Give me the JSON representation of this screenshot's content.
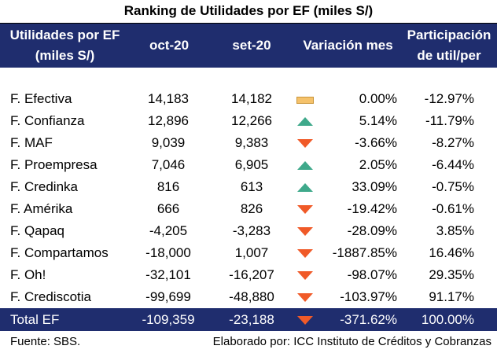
{
  "title": "Ranking de Utilidades por EF (miles S/)",
  "header": {
    "col_name_line1": "Utilidades por EF",
    "col_name_line2": "(miles S/)",
    "col_oct": "oct-20",
    "col_set": "set-20",
    "col_var": "Variación mes",
    "col_par_line1": "Participación",
    "col_par_line2": "de util/per"
  },
  "rows": [
    {
      "name": "F. Efectiva",
      "oct": "14,183",
      "set": "14,182",
      "trend": "flat",
      "var": "0.00%",
      "par": "-12.97%"
    },
    {
      "name": "F. Confianza",
      "oct": "12,896",
      "set": "12,266",
      "trend": "up",
      "var": "5.14%",
      "par": "-11.79%"
    },
    {
      "name": "F. MAF",
      "oct": "9,039",
      "set": "9,383",
      "trend": "down",
      "var": "-3.66%",
      "par": "-8.27%"
    },
    {
      "name": "F. Proempresa",
      "oct": "7,046",
      "set": "6,905",
      "trend": "up",
      "var": "2.05%",
      "par": "-6.44%"
    },
    {
      "name": "F. Credinka",
      "oct": "816",
      "set": "613",
      "trend": "up",
      "var": "33.09%",
      "par": "-0.75%"
    },
    {
      "name": "F. Amérika",
      "oct": "666",
      "set": "826",
      "trend": "down",
      "var": "-19.42%",
      "par": "-0.61%"
    },
    {
      "name": "F. Qapaq",
      "oct": "-4,205",
      "set": "-3,283",
      "trend": "down",
      "var": "-28.09%",
      "par": "3.85%"
    },
    {
      "name": "F. Compartamos",
      "oct": "-18,000",
      "set": "1,007",
      "trend": "down",
      "var": "-1887.85%",
      "par": "16.46%"
    },
    {
      "name": "F. Oh!",
      "oct": "-32,101",
      "set": "-16,207",
      "trend": "down",
      "var": "-98.07%",
      "par": "29.35%"
    },
    {
      "name": "F. Crediscotia",
      "oct": "-99,699",
      "set": "-48,880",
      "trend": "down",
      "var": "-103.97%",
      "par": "91.17%"
    }
  ],
  "total": {
    "name": "Total EF",
    "oct": "-109,359",
    "set": "-23,188",
    "trend": "down",
    "var": "-371.62%",
    "par": "100.00%"
  },
  "footer": {
    "source": "Fuente: SBS.",
    "elaborated": "Elaborado por: ICC Instituto de Créditos y Cobranzas"
  },
  "colors": {
    "header_bg": "#1f2d6e",
    "up": "#3fa98b",
    "down": "#f05a28",
    "flat": "#f5c26b"
  }
}
